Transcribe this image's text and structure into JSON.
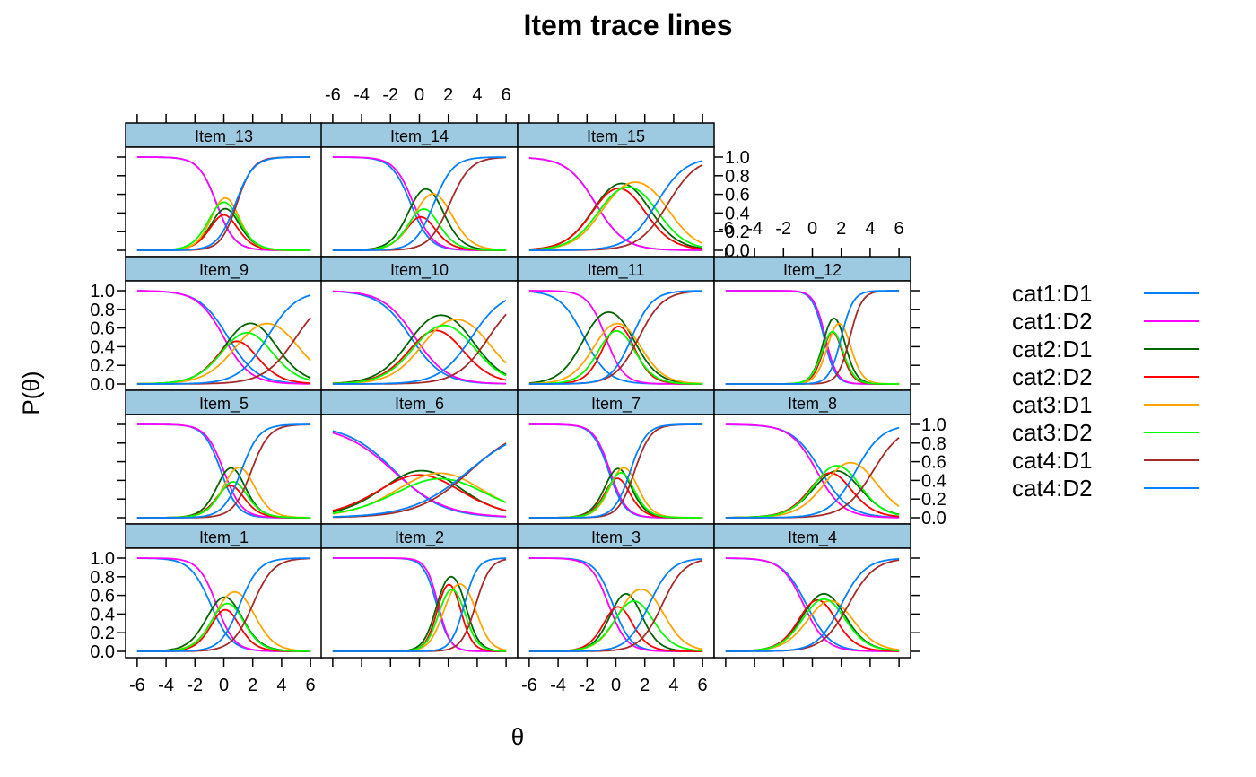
{
  "chart_data": {
    "type": "line",
    "title": "Item trace lines",
    "xlabel": "θ",
    "ylabel": "P(θ)",
    "xlim": [
      -6.8,
      6.8
    ],
    "ylim": [
      0.0,
      1.0
    ],
    "xticks": [
      -6,
      -4,
      -2,
      0,
      2,
      4,
      6
    ],
    "xtick_labels": [
      "-6",
      "-4",
      "-2",
      "0",
      "2",
      "4",
      "6"
    ],
    "yticks": [
      0.0,
      0.2,
      0.4,
      0.6,
      0.8,
      1.0
    ],
    "ytick_labels": [
      "0.0",
      "0.2",
      "0.4",
      "0.6",
      "0.8",
      "1.0"
    ],
    "series_names": [
      "cat1:D1",
      "cat1:D2",
      "cat2:D1",
      "cat2:D2",
      "cat3:D1",
      "cat3:D2",
      "cat4:D1",
      "cat4:D2"
    ],
    "series_colors": [
      "#0080ff",
      "#ff00ff",
      "#006400",
      "#ff0000",
      "#ffa500",
      "#00ff00",
      "#a52a2a",
      "#0080ff"
    ],
    "draw_order": [
      0,
      1,
      2,
      3,
      4,
      5,
      6,
      7
    ],
    "panels": [
      {
        "label": "Item_13",
        "row": 3,
        "col": 0,
        "params": [
          [
            1.6,
            -0.5,
            0.7
          ],
          [
            1.6,
            -0.5,
            0.5
          ],
          [
            1.8,
            -0.7,
            0.9
          ],
          [
            1.6,
            -0.8,
            0.8
          ]
        ]
      },
      {
        "label": "Item_14",
        "row": 3,
        "col": 1,
        "params": [
          [
            1.5,
            -0.6,
            1.5
          ],
          [
            1.5,
            -0.4,
            0.6
          ],
          [
            1.4,
            -0.2,
            2.1
          ],
          [
            1.5,
            -0.4,
            1.0
          ]
        ]
      },
      {
        "label": "Item_15",
        "row": 3,
        "col": 2,
        "params": [
          [
            1.0,
            -1.4,
            2.2
          ],
          [
            1.0,
            -1.4,
            1.8
          ],
          [
            1.0,
            -0.9,
            3.6
          ],
          [
            1.0,
            -1.1,
            2.8
          ]
        ]
      },
      {
        "label": "Item_9",
        "row": 2,
        "col": 0,
        "params": [
          [
            1.0,
            0.3,
            3.4
          ],
          [
            1.1,
            0.0,
            1.8
          ],
          [
            0.9,
            1.0,
            5.0
          ],
          [
            1.0,
            0.2,
            3.0
          ]
        ]
      },
      {
        "label": "Item_10",
        "row": 2,
        "col": 1,
        "params": [
          [
            0.9,
            -0.6,
            3.6
          ],
          [
            0.9,
            -0.3,
            2.6
          ],
          [
            0.9,
            0.3,
            4.8
          ],
          [
            0.9,
            -0.2,
            3.6
          ]
        ]
      },
      {
        "label": "Item_11",
        "row": 2,
        "col": 2,
        "params": [
          [
            1.2,
            -2.2,
            1.2
          ],
          [
            1.6,
            -0.7,
            1.1
          ],
          [
            1.2,
            -1.4,
            1.6
          ],
          [
            1.4,
            -1.0,
            1.1
          ]
        ]
      },
      {
        "label": "Item_12",
        "row": 2,
        "col": 3,
        "params": [
          [
            2.5,
            0.8,
            2.2
          ],
          [
            2.5,
            0.9,
            1.9
          ],
          [
            2.4,
            1.1,
            2.6
          ],
          [
            2.4,
            0.8,
            2.0
          ]
        ]
      },
      {
        "label": "Item_5",
        "row": 1,
        "col": 0,
        "params": [
          [
            1.7,
            -0.2,
            1.2
          ],
          [
            1.6,
            0.0,
            0.9
          ],
          [
            1.6,
            0.2,
            1.9
          ],
          [
            1.6,
            0.1,
            1.2
          ]
        ]
      },
      {
        "label": "Item_6",
        "row": 1,
        "col": 1,
        "params": [
          [
            0.6,
            -1.7,
            2.0
          ],
          [
            0.55,
            -1.8,
            1.8
          ],
          [
            0.55,
            -0.7,
            3.5
          ],
          [
            0.5,
            -0.5,
            3.4
          ]
        ]
      },
      {
        "label": "Item_7",
        "row": 1,
        "col": 2,
        "params": [
          [
            1.8,
            -0.5,
            0.8
          ],
          [
            1.8,
            -0.4,
            0.6
          ],
          [
            1.8,
            -0.2,
            1.3
          ],
          [
            1.8,
            -0.3,
            1.0
          ]
        ]
      },
      {
        "label": "Item_8",
        "row": 1,
        "col": 3,
        "params": [
          [
            1.0,
            0.6,
            2.8
          ],
          [
            1.1,
            0.3,
            2.2
          ],
          [
            1.0,
            1.1,
            4.2
          ],
          [
            1.1,
            0.4,
            3.0
          ]
        ]
      },
      {
        "label": "Item_1",
        "row": 0,
        "col": 0,
        "params": [
          [
            1.4,
            -0.9,
            1.0
          ],
          [
            1.6,
            -0.5,
            0.7
          ],
          [
            1.4,
            -0.5,
            2.0
          ],
          [
            1.5,
            -0.6,
            1.1
          ]
        ]
      },
      {
        "label": "Item_2",
        "row": 0,
        "col": 1,
        "params": [
          [
            2.2,
            1.2,
            3.2
          ],
          [
            2.4,
            1.3,
            2.8
          ],
          [
            2.0,
            1.7,
            3.9
          ],
          [
            2.2,
            1.4,
            3.1
          ]
        ]
      },
      {
        "label": "Item_3",
        "row": 0,
        "col": 2,
        "params": [
          [
            1.6,
            -0.2,
            1.6
          ],
          [
            1.6,
            -0.5,
            0.8
          ],
          [
            1.3,
            0.3,
            3.2
          ],
          [
            1.3,
            0.2,
            2.3
          ]
        ]
      },
      {
        "label": "Item_4",
        "row": 0,
        "col": 3,
        "params": [
          [
            1.2,
            -0.4,
            2.0
          ],
          [
            1.3,
            -0.6,
            1.3
          ],
          [
            1.1,
            0.0,
            2.5
          ],
          [
            1.2,
            -0.4,
            2.0
          ]
        ]
      }
    ]
  }
}
